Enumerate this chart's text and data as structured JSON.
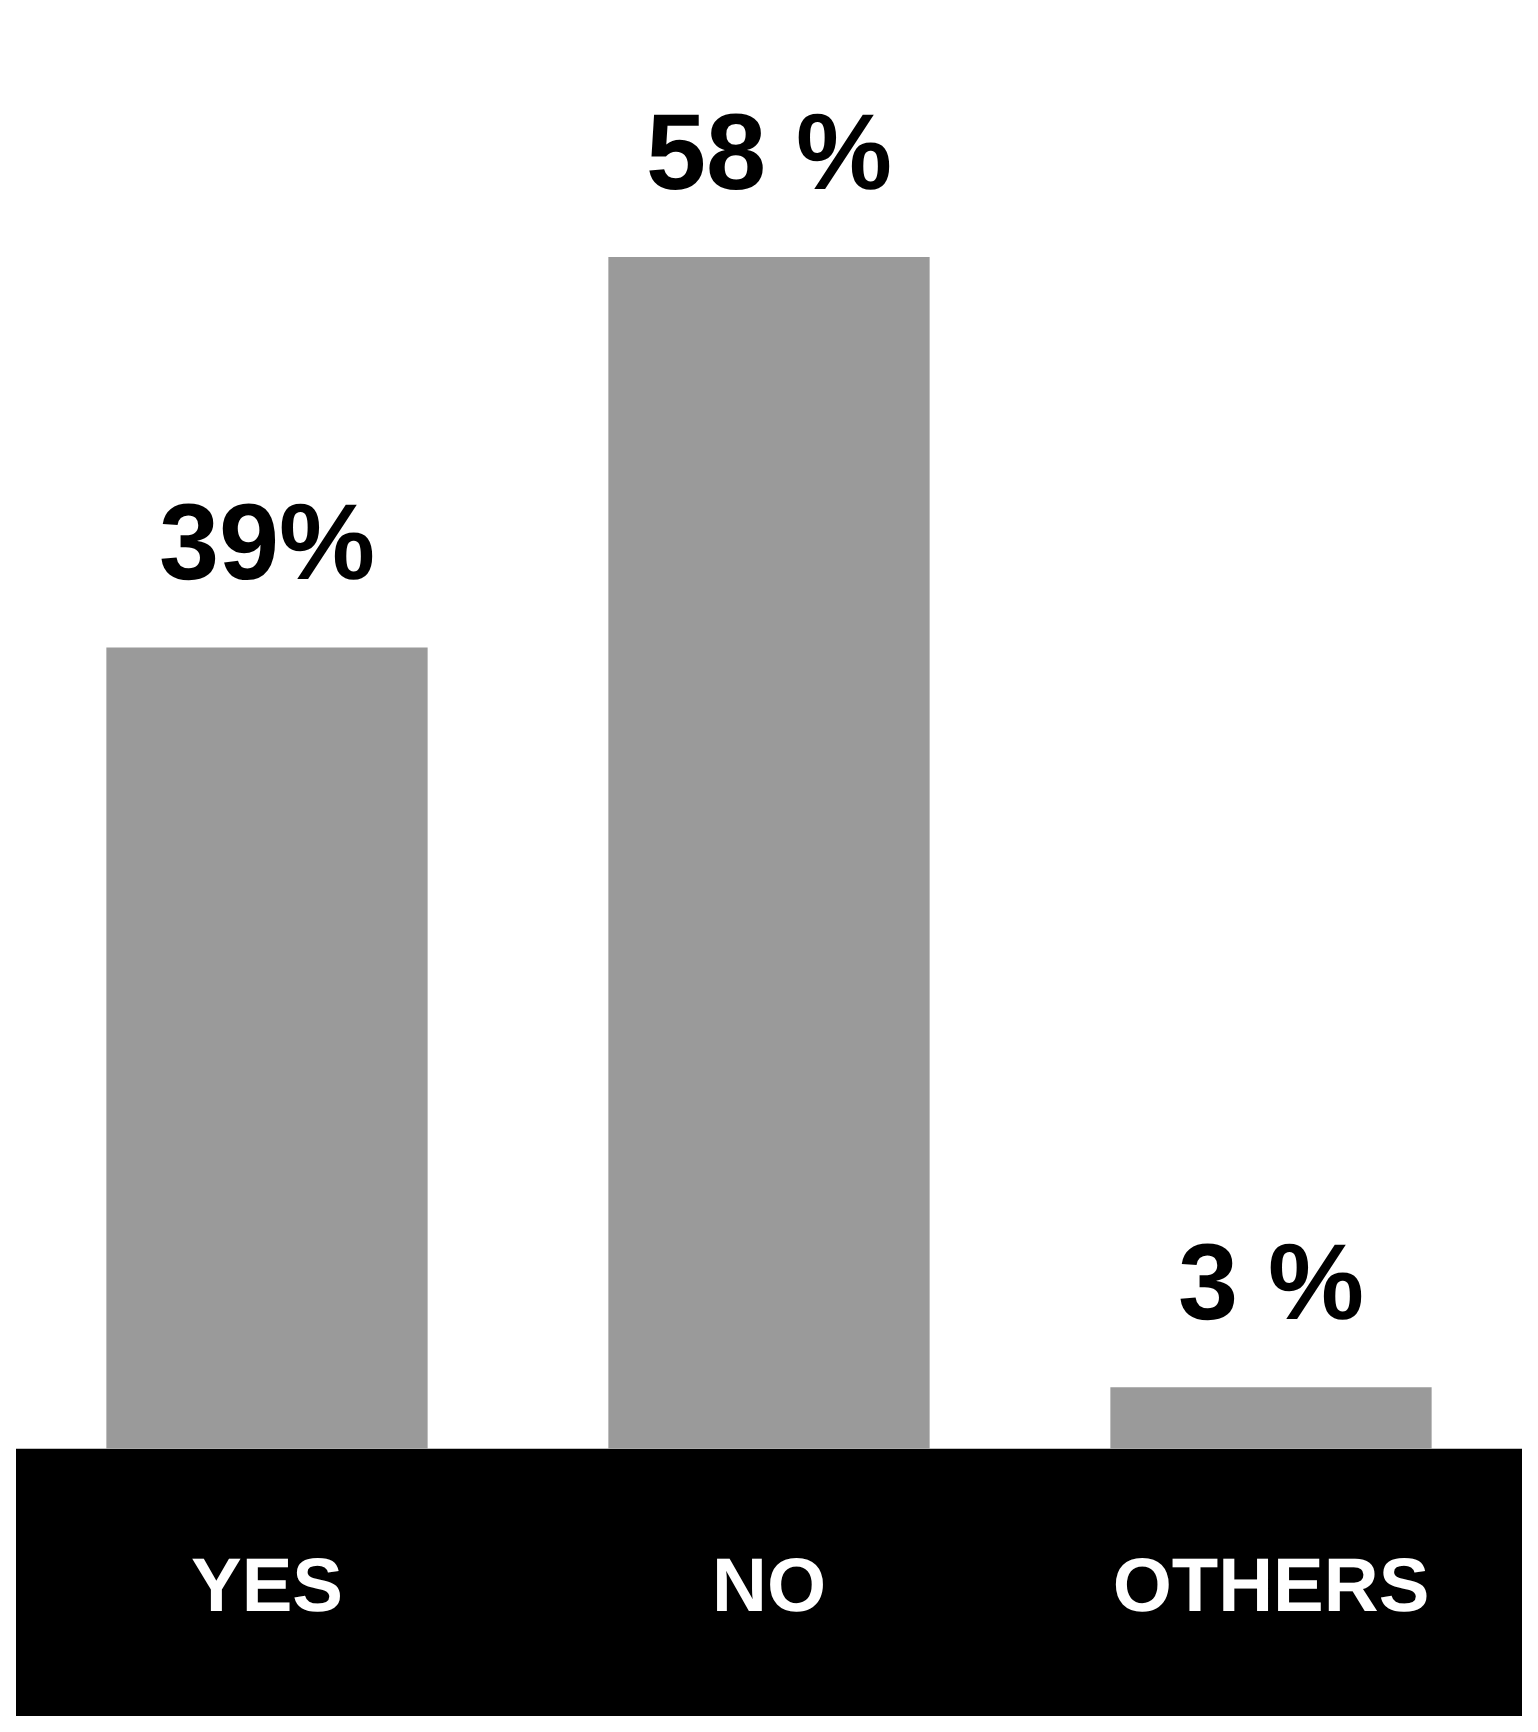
{
  "chart_data": {
    "type": "bar",
    "categories": [
      "YES",
      "NO",
      "OTHERS"
    ],
    "series": [
      {
        "color": "#9a9a9a",
        "values": [
          39,
          58,
          3
        ],
        "value_labels": [
          "39%",
          "58 %",
          "3 %"
        ]
      }
    ]
  }
}
